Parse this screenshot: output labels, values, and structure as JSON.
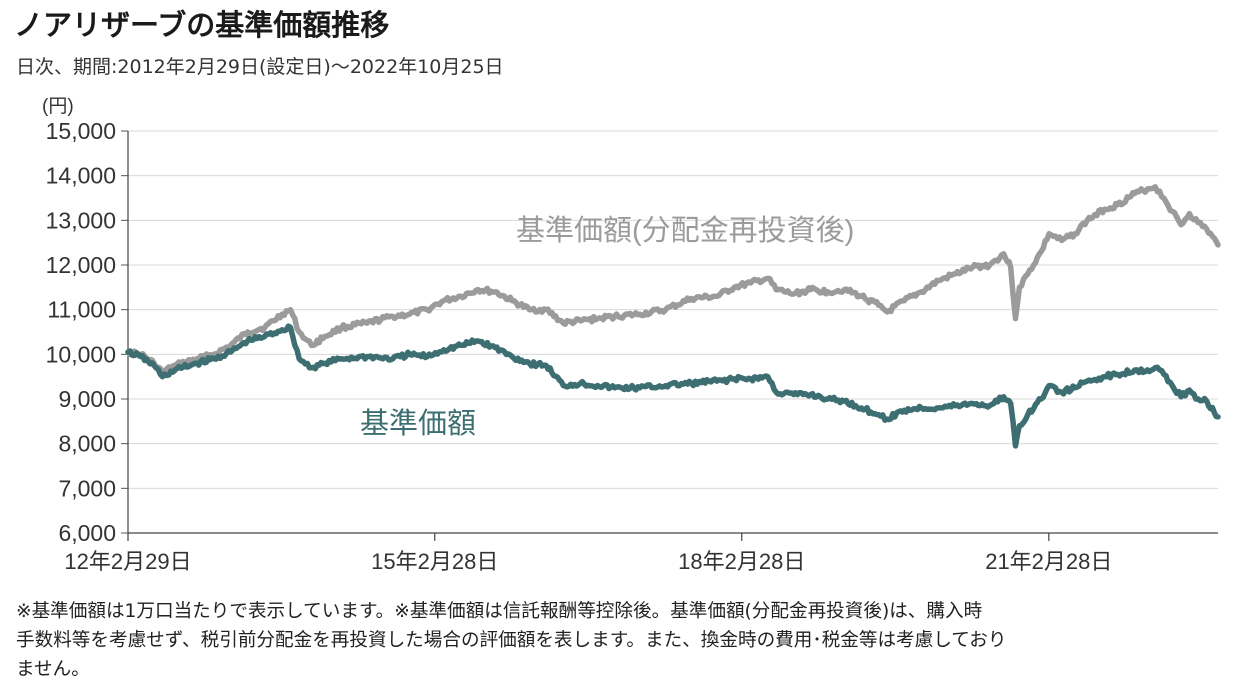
{
  "header": {
    "title": "ノアリザーブの基準価額推移",
    "subtitle": "日次、期間:2012年2月29日(設定日)～2022年10月25日"
  },
  "footnote": {
    "line1": "※基準価額は1万口当たりで表示しています。※基準価額は信託報酬等控除後。基準価額(分配金再投資後)は、購入時",
    "line2": "手数料等を考慮せず、税引前分配金を再投資した場合の評価額を表します。また、換金時の費用･税金等は考慮しており",
    "line3": "ません。"
  },
  "chart_data": {
    "type": "line",
    "ylabel": "(円)",
    "ylim": [
      6000,
      15000
    ],
    "yticks": [
      6000,
      7000,
      8000,
      9000,
      10000,
      11000,
      12000,
      13000,
      14000,
      15000
    ],
    "ytick_labels": [
      "6,000",
      "7,000",
      "8,000",
      "9,000",
      "10,000",
      "11,000",
      "12,000",
      "13,000",
      "14,000",
      "15,000"
    ],
    "xlim": [
      "2012-02-29",
      "2022-10-25"
    ],
    "xticks": [
      {
        "date": "2012-02-29",
        "label": "12年2月29日"
      },
      {
        "date": "2015-02-28",
        "label": "15年2月28日"
      },
      {
        "date": "2018-02-28",
        "label": "18年2月28日"
      },
      {
        "date": "2021-02-28",
        "label": "21年2月28日"
      }
    ],
    "grid": true,
    "series": [
      {
        "name": "基準価額(分配金再投資後)",
        "color": "#9b9b9b",
        "points": [
          [
            "2012-02-29",
            10050
          ],
          [
            "2012-04-15",
            10000
          ],
          [
            "2012-06-01",
            9800
          ],
          [
            "2012-07-01",
            9600
          ],
          [
            "2012-08-15",
            9750
          ],
          [
            "2012-11-01",
            9900
          ],
          [
            "2013-01-01",
            10000
          ],
          [
            "2013-03-01",
            10200
          ],
          [
            "2013-05-01",
            10500
          ],
          [
            "2013-07-01",
            10600
          ],
          [
            "2013-09-01",
            10900
          ],
          [
            "2013-10-01",
            11000
          ],
          [
            "2013-11-01",
            10500
          ],
          [
            "2013-12-15",
            10200
          ],
          [
            "2014-02-01",
            10400
          ],
          [
            "2014-04-01",
            10600
          ],
          [
            "2014-07-01",
            10700
          ],
          [
            "2014-10-01",
            10850
          ],
          [
            "2014-12-01",
            10900
          ],
          [
            "2015-02-01",
            11000
          ],
          [
            "2015-04-01",
            11200
          ],
          [
            "2015-06-01",
            11300
          ],
          [
            "2015-08-01",
            11450
          ],
          [
            "2015-10-01",
            11400
          ],
          [
            "2015-12-01",
            11200
          ],
          [
            "2016-02-01",
            11000
          ],
          [
            "2016-04-01",
            11000
          ],
          [
            "2016-06-01",
            10700
          ],
          [
            "2016-08-01",
            10750
          ],
          [
            "2016-10-01",
            10800
          ],
          [
            "2016-12-01",
            10850
          ],
          [
            "2017-03-01",
            10900
          ],
          [
            "2017-06-01",
            11000
          ],
          [
            "2017-09-01",
            11250
          ],
          [
            "2017-12-01",
            11300
          ],
          [
            "2018-02-01",
            11500
          ],
          [
            "2018-04-01",
            11600
          ],
          [
            "2018-06-01",
            11700
          ],
          [
            "2018-07-01",
            11450
          ],
          [
            "2018-09-01",
            11350
          ],
          [
            "2018-11-01",
            11450
          ],
          [
            "2019-01-01",
            11400
          ],
          [
            "2019-03-01",
            11450
          ],
          [
            "2019-05-01",
            11300
          ],
          [
            "2019-07-01",
            11100
          ],
          [
            "2019-08-01",
            10950
          ],
          [
            "2019-10-01",
            11200
          ],
          [
            "2019-12-01",
            11400
          ],
          [
            "2020-02-01",
            11650
          ],
          [
            "2020-04-01",
            11800
          ],
          [
            "2020-06-01",
            11950
          ],
          [
            "2020-08-01",
            12000
          ],
          [
            "2020-09-20",
            12250
          ],
          [
            "2020-10-15",
            11950
          ],
          [
            "2020-11-01",
            10800
          ],
          [
            "2020-11-15",
            11500
          ],
          [
            "2020-12-15",
            11800
          ],
          [
            "2021-02-01",
            12300
          ],
          [
            "2021-03-01",
            12700
          ],
          [
            "2021-04-15",
            12550
          ],
          [
            "2021-06-01",
            12700
          ],
          [
            "2021-07-15",
            13000
          ],
          [
            "2021-09-15",
            13250
          ],
          [
            "2021-11-01",
            13350
          ],
          [
            "2022-01-01",
            13600
          ],
          [
            "2022-02-15",
            13700
          ],
          [
            "2022-03-15",
            13750
          ],
          [
            "2022-04-15",
            13500
          ],
          [
            "2022-05-15",
            13200
          ],
          [
            "2022-06-15",
            12900
          ],
          [
            "2022-07-15",
            13150
          ],
          [
            "2022-08-15",
            12950
          ],
          [
            "2022-09-15",
            12800
          ],
          [
            "2022-10-25",
            12450
          ]
        ]
      },
      {
        "name": "基準価額",
        "color": "#3d6e72",
        "points": [
          [
            "2012-02-29",
            10050
          ],
          [
            "2012-04-15",
            9950
          ],
          [
            "2012-06-01",
            9750
          ],
          [
            "2012-07-01",
            9500
          ],
          [
            "2012-08-15",
            9650
          ],
          [
            "2012-11-01",
            9800
          ],
          [
            "2013-01-01",
            9900
          ],
          [
            "2013-03-01",
            10050
          ],
          [
            "2013-05-01",
            10300
          ],
          [
            "2013-07-01",
            10400
          ],
          [
            "2013-09-01",
            10550
          ],
          [
            "2013-10-01",
            10600
          ],
          [
            "2013-11-01",
            9900
          ],
          [
            "2013-12-15",
            9700
          ],
          [
            "2014-02-01",
            9800
          ],
          [
            "2014-04-01",
            9900
          ],
          [
            "2014-07-01",
            9950
          ],
          [
            "2014-10-01",
            9900
          ],
          [
            "2014-12-01",
            10000
          ],
          [
            "2015-02-01",
            9950
          ],
          [
            "2015-04-01",
            10100
          ],
          [
            "2015-06-01",
            10200
          ],
          [
            "2015-08-01",
            10300
          ],
          [
            "2015-10-01",
            10150
          ],
          [
            "2015-12-01",
            9950
          ],
          [
            "2016-02-01",
            9800
          ],
          [
            "2016-04-01",
            9750
          ],
          [
            "2016-06-01",
            9300
          ],
          [
            "2016-08-01",
            9350
          ],
          [
            "2016-10-01",
            9300
          ],
          [
            "2016-12-01",
            9250
          ],
          [
            "2017-03-01",
            9250
          ],
          [
            "2017-06-01",
            9300
          ],
          [
            "2017-09-01",
            9350
          ],
          [
            "2017-12-01",
            9400
          ],
          [
            "2018-02-01",
            9450
          ],
          [
            "2018-04-01",
            9450
          ],
          [
            "2018-06-01",
            9500
          ],
          [
            "2018-07-01",
            9150
          ],
          [
            "2018-09-01",
            9100
          ],
          [
            "2018-11-01",
            9100
          ],
          [
            "2019-01-01",
            9000
          ],
          [
            "2019-03-01",
            8950
          ],
          [
            "2019-05-01",
            8800
          ],
          [
            "2019-07-01",
            8650
          ],
          [
            "2019-08-01",
            8550
          ],
          [
            "2019-10-01",
            8750
          ],
          [
            "2019-12-01",
            8800
          ],
          [
            "2020-02-01",
            8800
          ],
          [
            "2020-04-01",
            8850
          ],
          [
            "2020-06-01",
            8900
          ],
          [
            "2020-08-01",
            8850
          ],
          [
            "2020-09-20",
            9050
          ],
          [
            "2020-10-15",
            8900
          ],
          [
            "2020-11-01",
            7950
          ],
          [
            "2020-11-15",
            8400
          ],
          [
            "2020-12-15",
            8650
          ],
          [
            "2021-02-01",
            9000
          ],
          [
            "2021-03-01",
            9300
          ],
          [
            "2021-04-15",
            9150
          ],
          [
            "2021-06-01",
            9250
          ],
          [
            "2021-07-15",
            9400
          ],
          [
            "2021-09-15",
            9500
          ],
          [
            "2021-11-01",
            9550
          ],
          [
            "2022-01-01",
            9650
          ],
          [
            "2022-02-15",
            9650
          ],
          [
            "2022-03-15",
            9700
          ],
          [
            "2022-04-15",
            9550
          ],
          [
            "2022-05-15",
            9300
          ],
          [
            "2022-06-15",
            9050
          ],
          [
            "2022-07-15",
            9200
          ],
          [
            "2022-08-15",
            9000
          ],
          [
            "2022-09-15",
            8950
          ],
          [
            "2022-10-25",
            8600
          ]
        ]
      }
    ]
  }
}
